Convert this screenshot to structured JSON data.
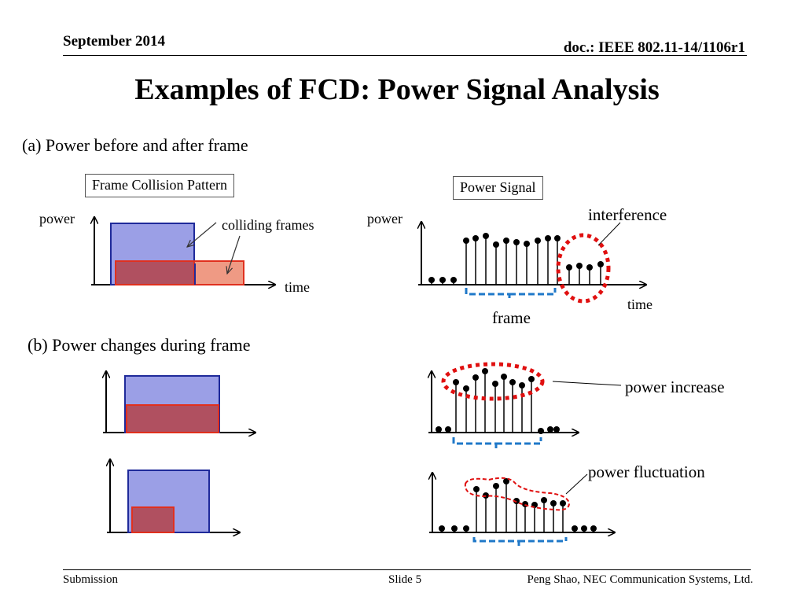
{
  "header": {
    "date": "September 2014",
    "doc_id": "doc.: IEEE 802.11-14/1106r1"
  },
  "title": "Examples of FCD: Power Signal Analysis",
  "section_a": {
    "heading": "(a) Power before and after frame",
    "collision_panel": {
      "box_label": "Frame Collision Pattern",
      "y_label": "power",
      "x_label": "time",
      "annotation": "colliding frames"
    },
    "signal_panel": {
      "box_label": "Power Signal",
      "y_label": "power",
      "x_label": "time",
      "interference_label": "interference",
      "frame_label": "frame"
    }
  },
  "section_b": {
    "heading": "(b) Power changes during frame",
    "increase_label": "power increase",
    "fluctuation_label": "power fluctuation"
  },
  "footer": {
    "left": "Submission",
    "center": "Slide 5",
    "right": "Peng Shao, NEC Communication Systems, Ltd."
  },
  "colors": {
    "frame_blue_fill": "#9b9fe6",
    "frame_blue_stroke": "#1f2a9a",
    "collision_fill": "#b05060",
    "collision_stroke": "#e0301e",
    "collision_light_fill": "#ef9a84",
    "interference_red": "#e01010",
    "frame_brace_blue": "#1f78c8"
  }
}
